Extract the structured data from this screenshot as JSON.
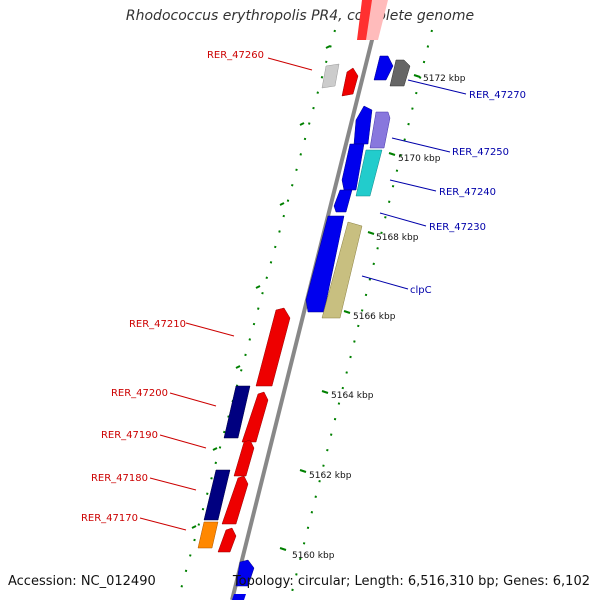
{
  "title": "Rhodococcus erythropolis PR4, complete genome",
  "accession": "Accession: NC_012490",
  "topology": "Topology: circular; Length: 6,516,310 bp; Genes: 6,102",
  "colors": {
    "backbone": "#888888",
    "ticks": "#008000",
    "label_left": "#cc0000",
    "label_right": "#0000aa"
  },
  "tick_labels": [
    {
      "text": "5172 kbp"
    },
    {
      "text": "5170 kbp"
    },
    {
      "text": "5168 kbp"
    },
    {
      "text": "5166 kbp"
    },
    {
      "text": "5164 kbp"
    },
    {
      "text": "5162 kbp"
    },
    {
      "text": "5160 kbp"
    }
  ],
  "gene_labels_left": [
    {
      "text": "RER_47260"
    },
    {
      "text": "RER_47210"
    },
    {
      "text": "RER_47200"
    },
    {
      "text": "RER_47190"
    },
    {
      "text": "RER_47180"
    },
    {
      "text": "RER_47170"
    }
  ],
  "gene_labels_right": [
    {
      "text": "RER_47270"
    },
    {
      "text": "RER_47250"
    },
    {
      "text": "RER_47240"
    },
    {
      "text": "RER_47230"
    },
    {
      "text": "clpC"
    }
  ]
}
